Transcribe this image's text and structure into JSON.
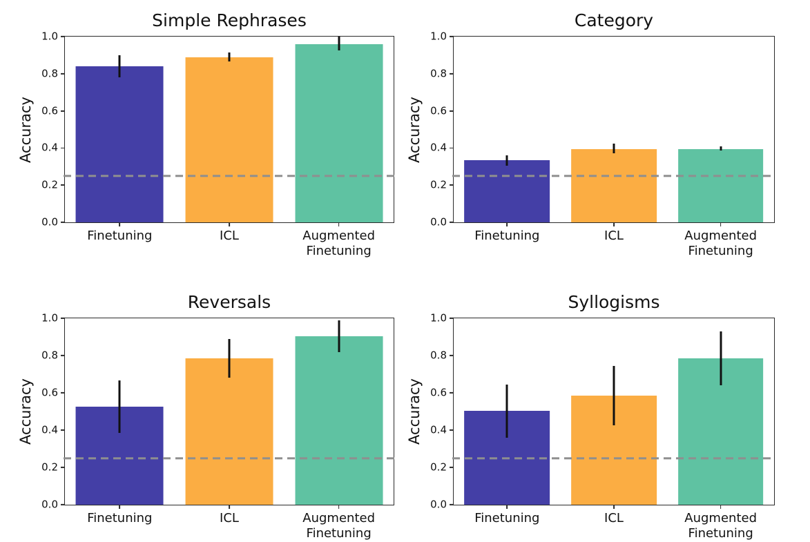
{
  "figure": {
    "background": "#ffffff",
    "axis_color": "#2a2a2a",
    "text_color": "#111111",
    "errorbar_color": "#111111",
    "chance_line_color": "#8f8f8f"
  },
  "chart_data": [
    {
      "id": "simple-rephrases",
      "type": "bar",
      "title": "Simple Rephrases",
      "ylabel": "Accuracy",
      "ylim": [
        0.0,
        1.0
      ],
      "yticks": [
        "0.0",
        "0.2",
        "0.4",
        "0.6",
        "0.8",
        "1.0"
      ],
      "grid": false,
      "legend": "none",
      "categories": [
        "Finetuning",
        "ICL",
        "Augmented\nFinetuning"
      ],
      "values": [
        0.84,
        0.89,
        0.96
      ],
      "error_bars": [
        [
          0.78,
          0.9
        ],
        [
          0.865,
          0.915
        ],
        [
          0.925,
          1.0
        ]
      ],
      "bar_colors": [
        "#443fa6",
        "#fbad43",
        "#5fc2a2"
      ],
      "chance_line_y": 0.25
    },
    {
      "id": "category",
      "type": "bar",
      "title": "Category",
      "ylabel": "Accuracy",
      "ylim": [
        0.0,
        1.0
      ],
      "yticks": [
        "0.0",
        "0.2",
        "0.4",
        "0.6",
        "0.8",
        "1.0"
      ],
      "grid": false,
      "legend": "none",
      "categories": [
        "Finetuning",
        "ICL",
        "Augmented\nFinetuning"
      ],
      "values": [
        0.335,
        0.395,
        0.395
      ],
      "error_bars": [
        [
          0.305,
          0.36
        ],
        [
          0.37,
          0.425
        ],
        [
          0.385,
          0.41
        ]
      ],
      "bar_colors": [
        "#443fa6",
        "#fbad43",
        "#5fc2a2"
      ],
      "chance_line_y": 0.25
    },
    {
      "id": "reversals",
      "type": "bar",
      "title": "Reversals",
      "ylabel": "Accuracy",
      "ylim": [
        0.0,
        1.0
      ],
      "yticks": [
        "0.0",
        "0.2",
        "0.4",
        "0.6",
        "0.8",
        "1.0"
      ],
      "grid": false,
      "legend": "none",
      "categories": [
        "Finetuning",
        "ICL",
        "Augmented\nFinetuning"
      ],
      "values": [
        0.525,
        0.785,
        0.905
      ],
      "error_bars": [
        [
          0.385,
          0.665
        ],
        [
          0.68,
          0.89
        ],
        [
          0.82,
          0.99
        ]
      ],
      "bar_colors": [
        "#443fa6",
        "#fbad43",
        "#5fc2a2"
      ],
      "chance_line_y": 0.25
    },
    {
      "id": "syllogisms",
      "type": "bar",
      "title": "Syllogisms",
      "ylabel": "Accuracy",
      "ylim": [
        0.0,
        1.0
      ],
      "yticks": [
        "0.0",
        "0.2",
        "0.4",
        "0.6",
        "0.8",
        "1.0"
      ],
      "grid": false,
      "legend": "none",
      "categories": [
        "Finetuning",
        "ICL",
        "Augmented\nFinetuning"
      ],
      "values": [
        0.505,
        0.585,
        0.785
      ],
      "error_bars": [
        [
          0.36,
          0.645
        ],
        [
          0.425,
          0.745
        ],
        [
          0.64,
          0.93
        ]
      ],
      "bar_colors": [
        "#443fa6",
        "#fbad43",
        "#5fc2a2"
      ],
      "chance_line_y": 0.25
    }
  ]
}
